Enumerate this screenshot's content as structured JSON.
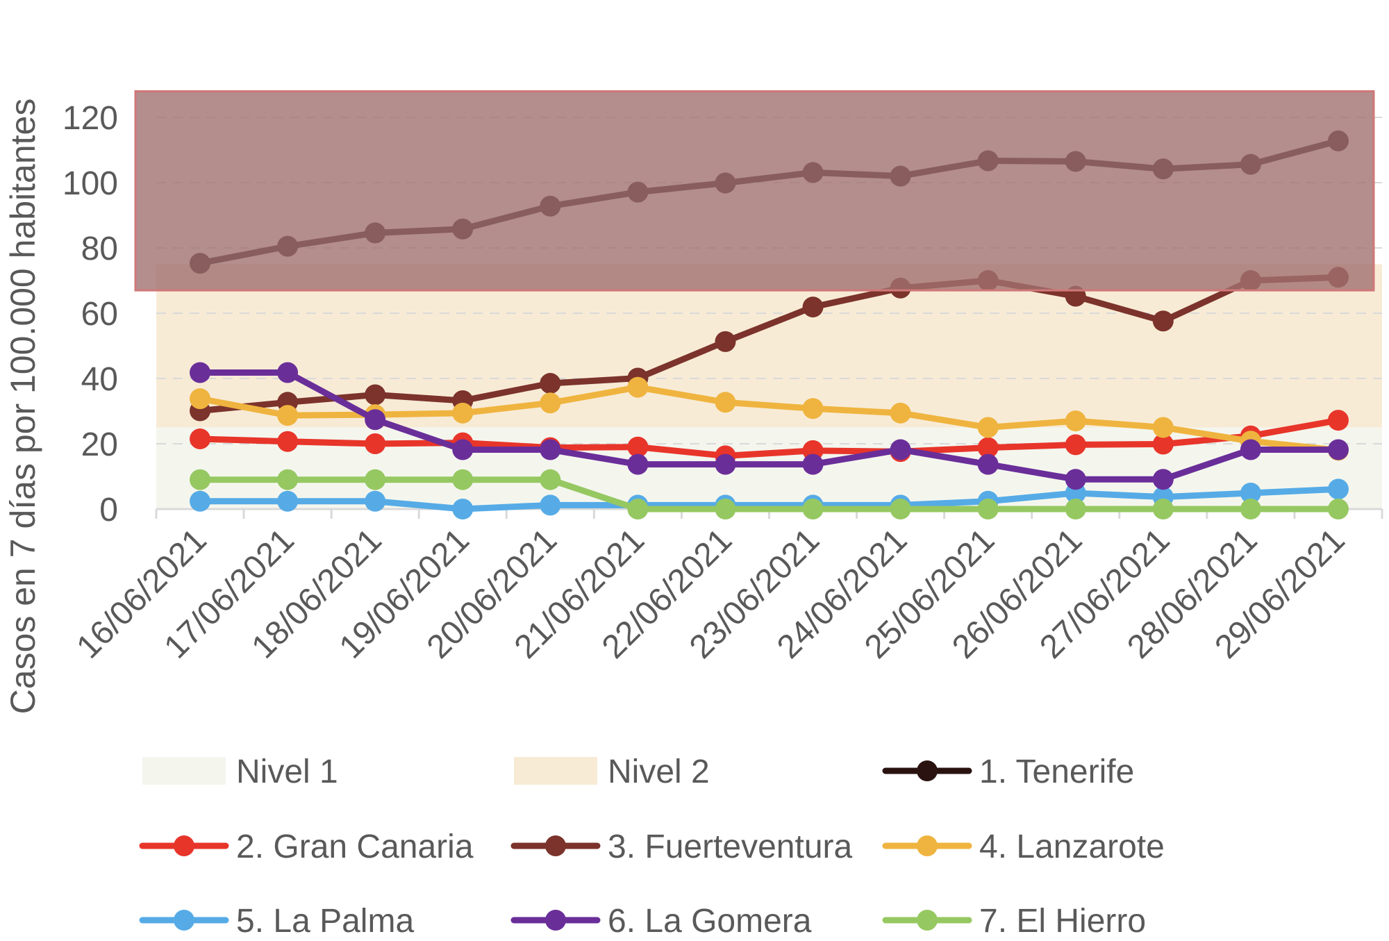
{
  "chart_data": {
    "type": "line",
    "title": "",
    "xlabel": "",
    "ylabel": "Casos en 7 días por 100.000 habitantes",
    "ylim": [
      0,
      120
    ],
    "yticks": [
      0,
      20,
      40,
      60,
      80,
      100,
      120
    ],
    "grid": true,
    "categories": [
      "16/06/2021",
      "17/06/2021",
      "18/06/2021",
      "19/06/2021",
      "20/06/2021",
      "21/06/2021",
      "22/06/2021",
      "23/06/2021",
      "24/06/2021",
      "25/06/2021",
      "26/06/2021",
      "27/06/2021",
      "28/06/2021",
      "29/06/2021"
    ],
    "bands": [
      {
        "name": "Nivel 1",
        "from": 0,
        "to": 25,
        "color": "#f4f6ee"
      },
      {
        "name": "Nivel 2",
        "from": 25,
        "to": 75,
        "color": "#f8ebd6"
      },
      {
        "name": "",
        "from": 67,
        "to": 128,
        "color": "#a17070",
        "border": "#d07878"
      }
    ],
    "series": [
      {
        "name": "2. Gran Canaria",
        "color": "#e8352a",
        "values": [
          21.5,
          20.7,
          20.0,
          20.3,
          18.8,
          19.0,
          16.3,
          17.9,
          17.6,
          18.8,
          19.7,
          19.9,
          22.4,
          27.2
        ]
      },
      {
        "name": "3. Fuerteventura",
        "color": "#7b332b",
        "values": [
          30.1,
          32.7,
          35.0,
          33.2,
          38.5,
          40.1,
          51.3,
          61.9,
          67.7,
          70.0,
          65.2,
          57.6,
          70.0,
          71.0
        ]
      },
      {
        "name": "4. Lanzarote",
        "color": "#efb43f",
        "values": [
          33.8,
          28.7,
          28.9,
          29.4,
          32.5,
          37.3,
          32.7,
          30.8,
          29.4,
          25.0,
          27.0,
          25.0,
          20.8,
          18.0
        ]
      },
      {
        "name": "5. La Palma",
        "color": "#56abe6",
        "values": [
          2.4,
          2.4,
          2.4,
          0,
          1.2,
          1.2,
          1.2,
          1.2,
          1.2,
          2.4,
          4.9,
          3.7,
          4.9,
          6.1
        ]
      },
      {
        "name": "6. La Gomera",
        "color": "#6a2e99",
        "values": [
          41.8,
          41.8,
          27.4,
          18.2,
          18.2,
          13.7,
          13.7,
          13.7,
          18.2,
          13.7,
          9.1,
          9.1,
          18.2,
          18.2
        ]
      },
      {
        "name": "7. El Hierro",
        "color": "#96c862",
        "values": [
          9.0,
          9.0,
          9.0,
          9.0,
          9.0,
          0,
          0,
          0,
          0,
          0,
          0,
          0,
          0,
          0
        ]
      },
      {
        "name": "1. Tenerife",
        "color": "#2a1210",
        "values": [
          75.3,
          80.5,
          84.6,
          85.8,
          92.8,
          97.1,
          99.9,
          103.1,
          102.0,
          106.7,
          106.5,
          104.2,
          105.6,
          112.8
        ]
      }
    ],
    "legend": {
      "placement": "bottom",
      "entries": [
        {
          "label": "Nivel 1",
          "kind": "band",
          "color": "#f4f6ee"
        },
        {
          "label": "Nivel 2",
          "kind": "band",
          "color": "#f8ebd6"
        },
        {
          "label": "1. Tenerife",
          "kind": "line",
          "color": "#2a1210"
        },
        {
          "label": "2. Gran Canaria",
          "kind": "line",
          "color": "#e8352a"
        },
        {
          "label": "3. Fuerteventura",
          "kind": "line",
          "color": "#7b332b"
        },
        {
          "label": "4. Lanzarote",
          "kind": "line",
          "color": "#efb43f"
        },
        {
          "label": "5. La Palma",
          "kind": "line",
          "color": "#56abe6"
        },
        {
          "label": "6. La Gomera",
          "kind": "line",
          "color": "#6a2e99"
        },
        {
          "label": "7. El Hierro",
          "kind": "line",
          "color": "#96c862"
        }
      ]
    }
  }
}
